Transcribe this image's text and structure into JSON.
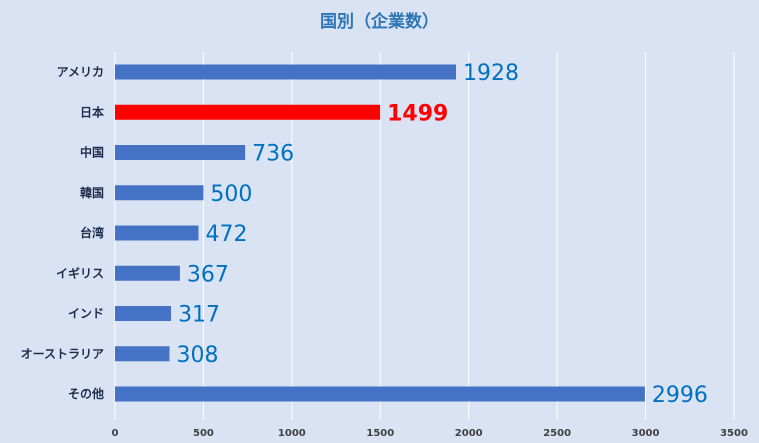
{
  "chart_data": {
    "type": "bar",
    "orientation": "horizontal",
    "title": "国別（企業数）",
    "categories": [
      "アメリカ",
      "日本",
      "中国",
      "韓国",
      "台湾",
      "イギリス",
      "インド",
      "オーストラリア",
      "その他"
    ],
    "values": [
      1928,
      1499,
      736,
      500,
      472,
      367,
      317,
      308,
      2996
    ],
    "highlight": "日本",
    "xlim": [
      0,
      3500
    ],
    "xticks": [
      "0",
      "500",
      "1000",
      "1500",
      "2000",
      "2500",
      "3000",
      "3500"
    ],
    "grid": true,
    "colors": {
      "bar": "#4472c4",
      "highlight": "#ff0000",
      "data_label": "#0070c0",
      "highlight_label": "#ff0000",
      "title": "#2e75b6",
      "background": "#dae3f3"
    }
  }
}
